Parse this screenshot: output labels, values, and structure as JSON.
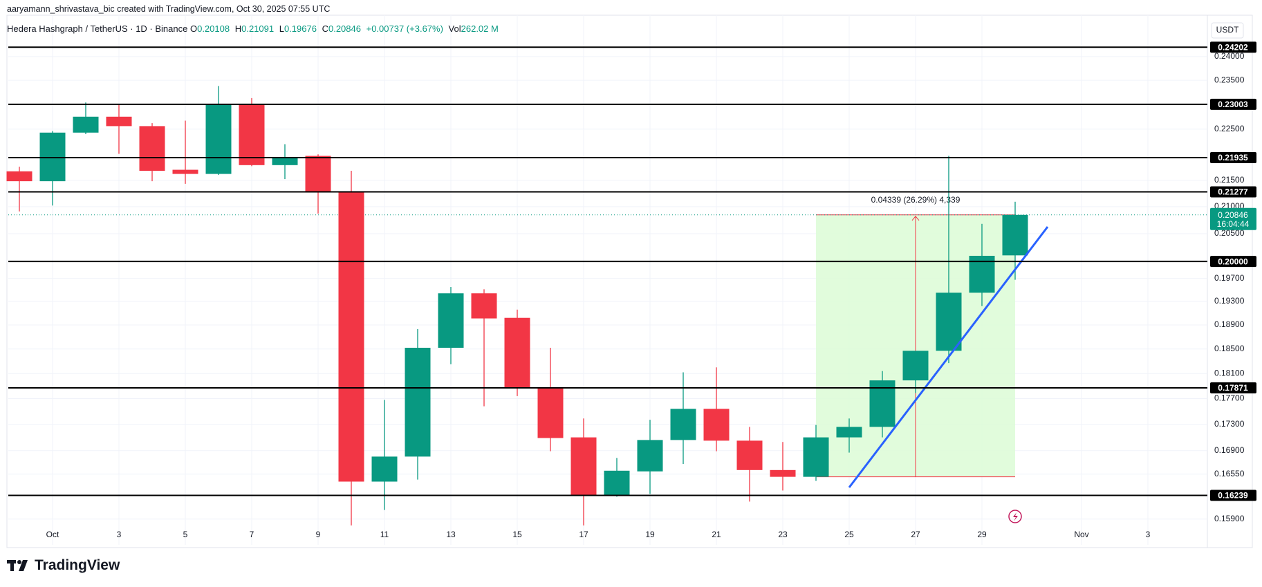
{
  "chart_data": {
    "type": "candlestick",
    "credit": "aaryamann_shrivastava_bic created with TradingView.com, Oct 30, 2025 07:55 UTC",
    "title": "Hedera Hashgraph / TetherUS · 1D · Binance",
    "ohlc_labels": [
      "O",
      "H",
      "L",
      "C"
    ],
    "change": "+0.00737 (+3.67%)",
    "volume_label": "Vol",
    "volume": "262.02 M",
    "currency": "USDT",
    "countdown": "16:04:44",
    "measure_label": "0.04339 (26.29%) 4,339",
    "logo": "TradingView",
    "categories": [
      null,
      "Oct",
      null,
      "3",
      null,
      "5",
      null,
      "7",
      null,
      "9",
      null,
      "11",
      null,
      "13",
      null,
      "15",
      null,
      "17",
      null,
      "19",
      null,
      "21",
      null,
      "23",
      null,
      "25",
      null,
      "27",
      null,
      "29",
      null,
      null,
      "Nov",
      null,
      "3"
    ],
    "open": [
      0.2167,
      0.2148,
      0.2243,
      0.2275,
      0.2256,
      0.217,
      0.2162,
      0.23,
      0.2179,
      0.2197,
      0.2129,
      0.1644,
      0.1681,
      0.1852,
      0.1944,
      0.1902,
      0.1788,
      0.171,
      0.1624,
      0.1659,
      0.1706,
      0.1754,
      0.1705,
      0.1661,
      0.1651,
      0.171,
      0.1726,
      0.1799,
      0.1847,
      0.1945,
      0.20108,
      null,
      null,
      null,
      null
    ],
    "high": [
      0.2176,
      0.2246,
      0.2304,
      0.23,
      0.2262,
      0.2267,
      0.2338,
      0.2313,
      0.222,
      0.22,
      0.2168,
      0.1768,
      0.1883,
      0.1955,
      0.1951,
      0.1916,
      0.1852,
      0.1739,
      0.1679,
      0.1737,
      0.1812,
      0.182,
      0.1726,
      0.1703,
      0.1729,
      0.1739,
      0.1814,
      0.1847,
      0.2197,
      0.2068,
      0.21091,
      null,
      null,
      null,
      null
    ],
    "low": [
      0.2091,
      0.2102,
      0.224,
      0.2201,
      0.2148,
      0.2143,
      0.216,
      0.2177,
      0.2152,
      0.2087,
      0.1581,
      0.1603,
      0.1647,
      0.1825,
      0.1758,
      0.1774,
      0.1689,
      0.1581,
      0.1622,
      0.1626,
      0.167,
      0.1689,
      0.1615,
      0.1631,
      0.1645,
      0.1687,
      0.171,
      0.1779,
      0.1827,
      0.1922,
      0.19676,
      null,
      null,
      null,
      null
    ],
    "close": [
      0.2148,
      0.2243,
      0.2275,
      0.2256,
      0.2168,
      0.2162,
      0.23,
      0.2179,
      0.2194,
      0.2128,
      0.1644,
      0.1681,
      0.1852,
      0.1944,
      0.1901,
      0.1788,
      0.1709,
      0.1624,
      0.166,
      0.1706,
      0.1754,
      0.1705,
      0.1661,
      0.1651,
      0.171,
      0.1726,
      0.1799,
      0.1847,
      0.1945,
      0.201,
      0.20846,
      null,
      null,
      null,
      null
    ],
    "up_color": "#089981",
    "down_color": "#f23645",
    "log_scale": true,
    "grid": true,
    "ylim": [
      0.1554,
      0.2484
    ],
    "yticks": [
      {
        "value": 0.24,
        "label": "0.24000"
      },
      {
        "value": 0.235,
        "label": "0.23500"
      },
      {
        "value": 0.225,
        "label": "0.22500"
      },
      {
        "value": 0.215,
        "label": "0.21500"
      },
      {
        "value": 0.21,
        "label": "0.21000"
      },
      {
        "value": 0.205,
        "label": "0.20500"
      },
      {
        "value": 0.197,
        "label": "0.19700"
      },
      {
        "value": 0.193,
        "label": "0.19300"
      },
      {
        "value": 0.189,
        "label": "0.18900"
      },
      {
        "value": 0.185,
        "label": "0.18500"
      },
      {
        "value": 0.181,
        "label": "0.18100"
      },
      {
        "value": 0.177,
        "label": "0.17700"
      },
      {
        "value": 0.173,
        "label": "0.17300"
      },
      {
        "value": 0.169,
        "label": "0.16900"
      },
      {
        "value": 0.1655,
        "label": "0.16550"
      },
      {
        "value": 0.159,
        "label": "0.15900"
      }
    ],
    "levels": [
      0.24202,
      0.23003,
      0.21935,
      0.21277,
      {
        "value": 0.2,
        "label": "0.20000"
      },
      0.17871,
      0.16239
    ]
  }
}
